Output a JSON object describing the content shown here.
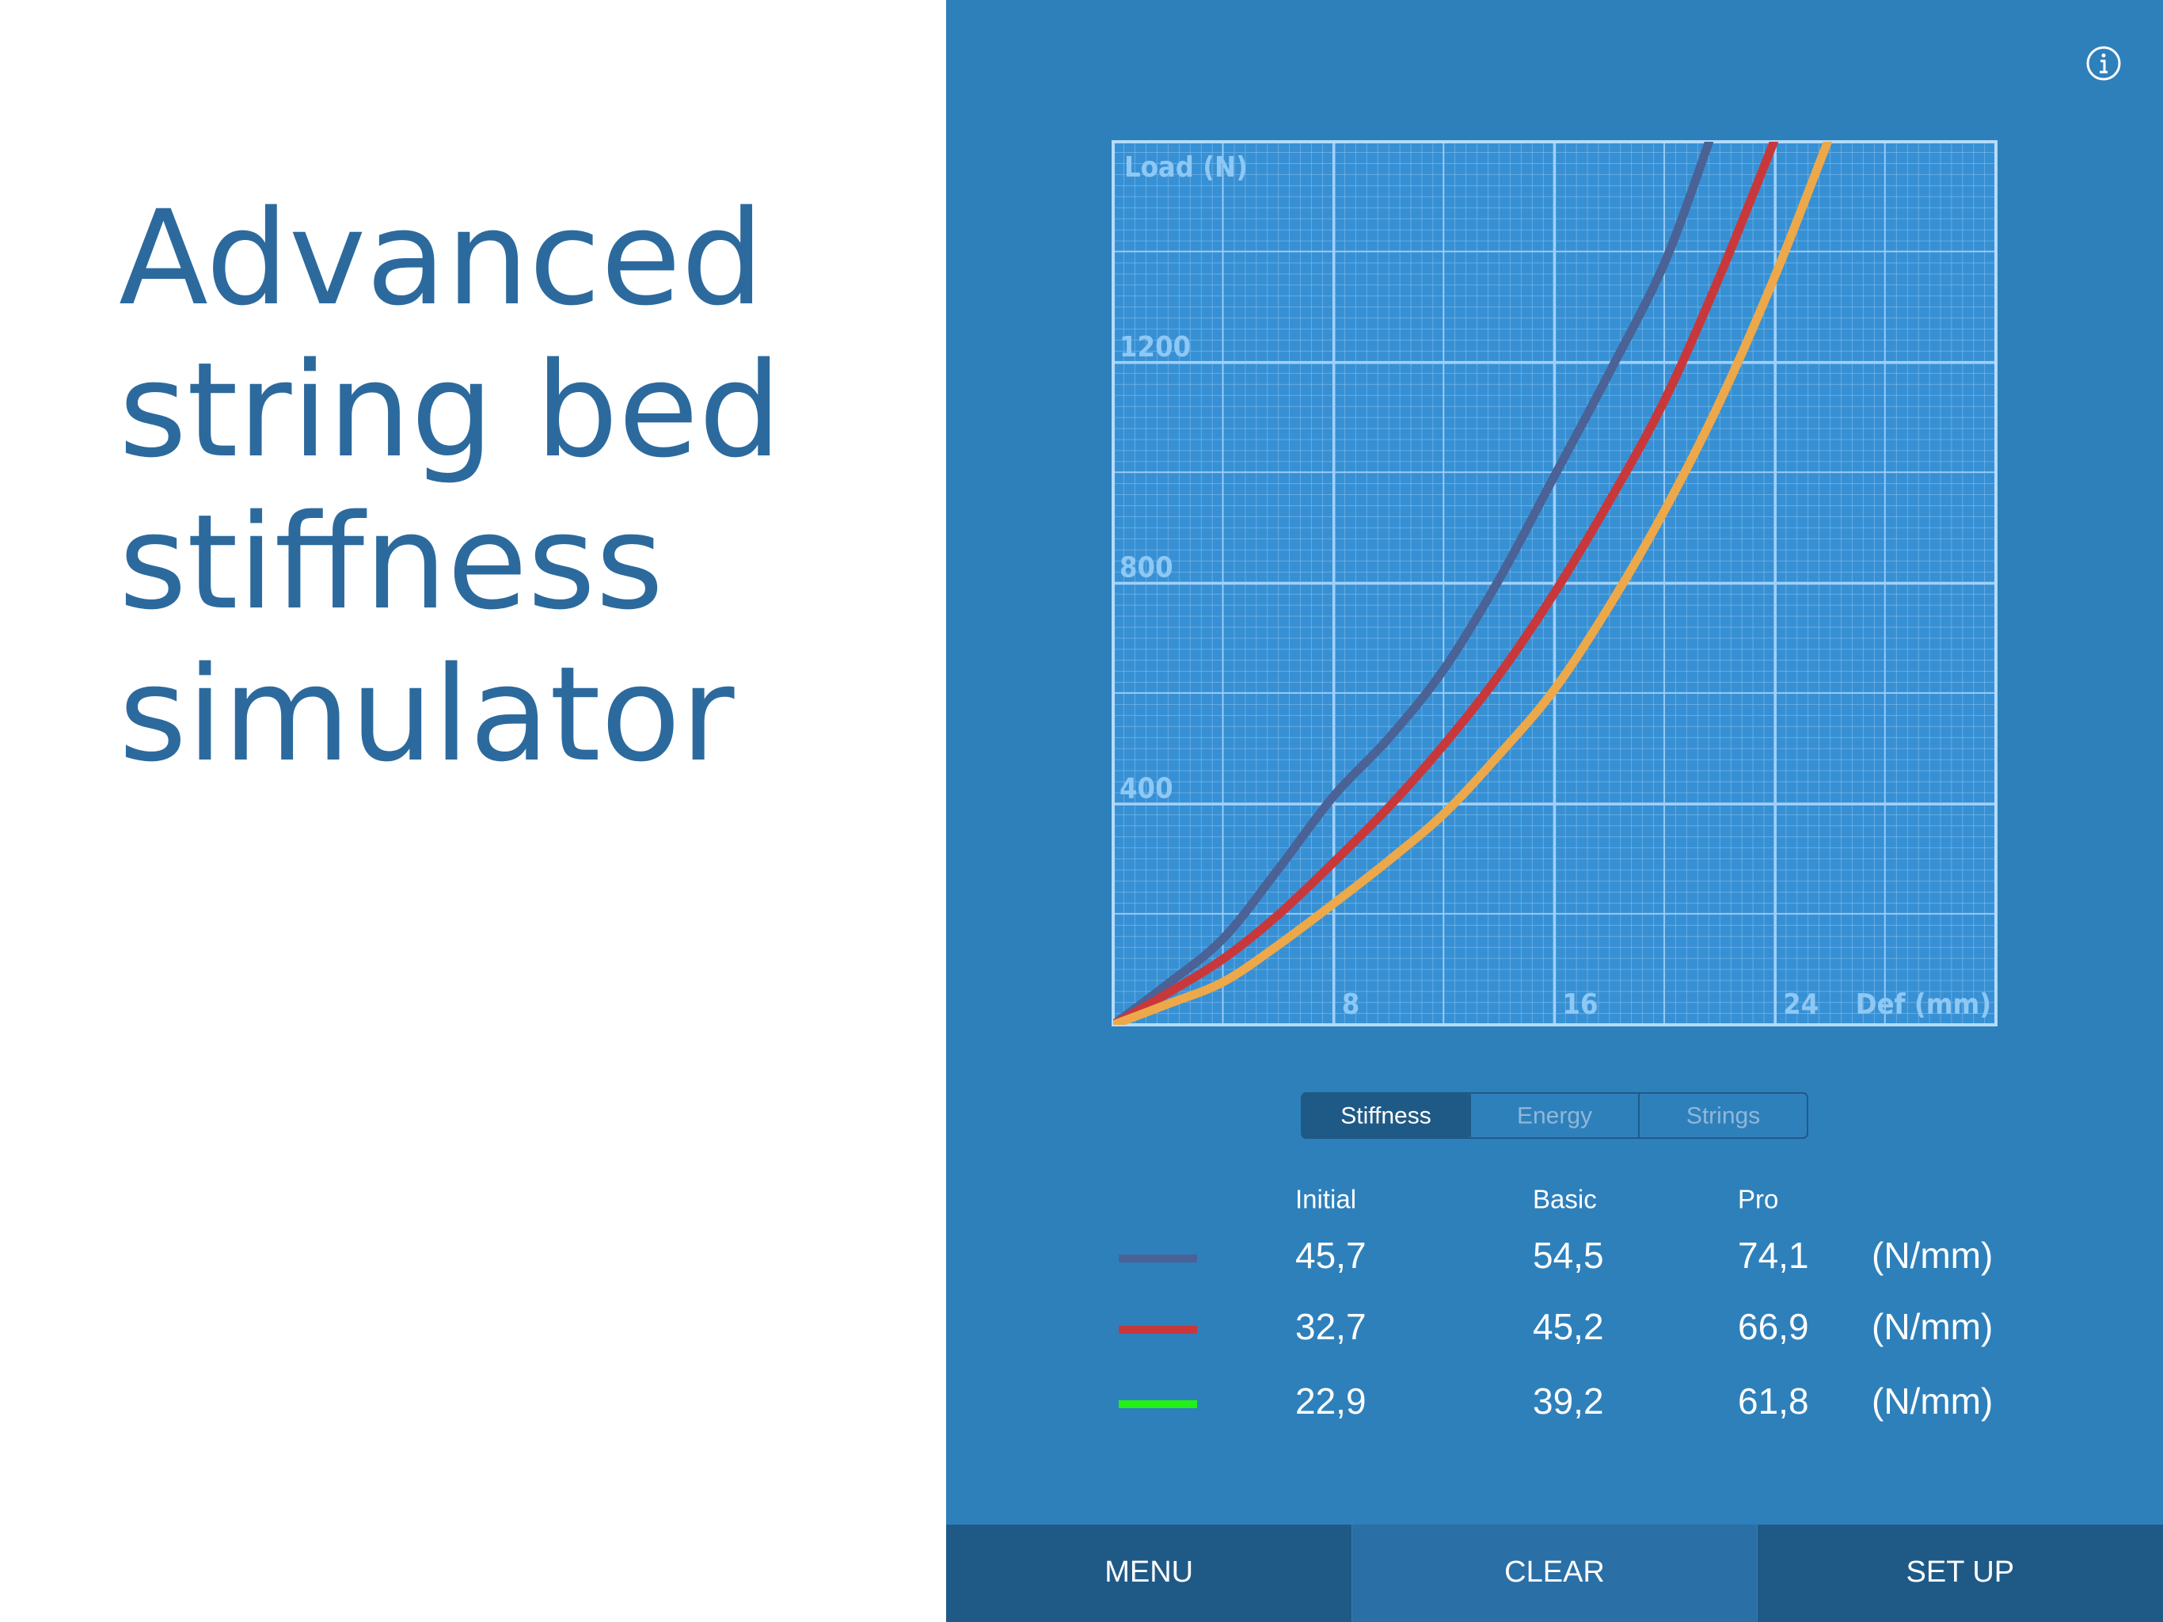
{
  "header": {
    "title_lines": [
      "Advanced",
      "string bed",
      "stiffness",
      "simulator"
    ]
  },
  "chart_data": {
    "type": "line",
    "x_label": "Def (mm)",
    "y_label": "Load (N)",
    "xlim": [
      0,
      32
    ],
    "ylim": [
      0,
      1600
    ],
    "xticks": [
      8,
      16,
      24
    ],
    "yticks": [
      400,
      800,
      1200
    ],
    "grid": true,
    "series": [
      {
        "color": "#4b6296",
        "x": [
          0,
          2,
          4,
          6,
          8,
          10,
          12,
          14,
          16,
          18,
          20,
          21.6
        ],
        "values": [
          0,
          75,
          157,
          283,
          415,
          520,
          645,
          808,
          995,
          1183,
          1382,
          1600
        ]
      },
      {
        "color": "#c8383b",
        "x": [
          0,
          2,
          4,
          6,
          8,
          10,
          12,
          14,
          16,
          18,
          20,
          22,
          23.95
        ],
        "values": [
          0,
          58,
          120,
          200,
          295,
          395,
          508,
          635,
          783,
          950,
          1133,
          1358,
          1600
        ]
      },
      {
        "color": "#eda84a",
        "x": [
          0,
          2,
          4,
          6,
          8,
          10,
          12,
          14,
          16,
          18,
          20,
          22,
          24,
          25.9
        ],
        "values": [
          0,
          38,
          78,
          145,
          220,
          298,
          383,
          490,
          608,
          760,
          933,
          1130,
          1358,
          1600
        ]
      }
    ]
  },
  "tabs": [
    "Stiffness",
    "Energy",
    "Strings"
  ],
  "table": {
    "columns": [
      "Initial",
      "Basic",
      "Pro"
    ],
    "rows": [
      {
        "color": "#4b6296",
        "values": [
          "45,7",
          "54,5",
          "74,1"
        ],
        "unit": "(N/mm)"
      },
      {
        "color": "#c8383b",
        "values": [
          "32,7",
          "45,2",
          "66,9"
        ],
        "unit": "(N/mm)"
      },
      {
        "color": "#22f018",
        "values": [
          "22,9",
          "39,2",
          "61,8"
        ],
        "unit": "(N/mm)"
      }
    ]
  },
  "buttons": [
    "MENU",
    "CLEAR",
    "SET UP"
  ]
}
